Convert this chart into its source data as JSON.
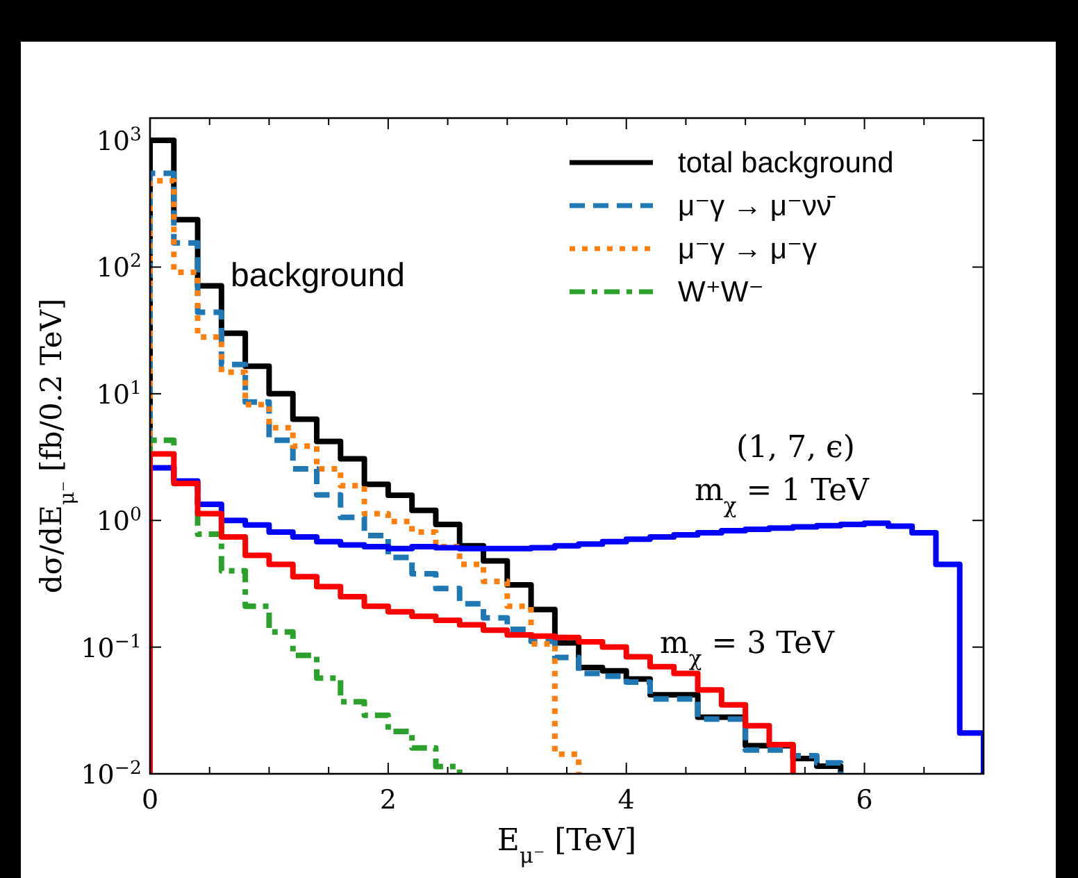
{
  "chart_data": {
    "type": "histogram",
    "xlabel": "E$_{μ⁻}$ [TeV]",
    "ylabel": "dσ/dE$_{μ⁻}$ [fb/0.2 TeV]",
    "bins": [
      0,
      0.2,
      0.4,
      0.6,
      0.8,
      1.0,
      1.2,
      1.4,
      1.6,
      1.8,
      2.0,
      2.2,
      2.4,
      2.6,
      2.8,
      3.0,
      3.2,
      3.4,
      3.6,
      3.8,
      4.0,
      4.2,
      4.4,
      4.6,
      4.8,
      5.0,
      5.2,
      5.4,
      5.6,
      5.8,
      6.0,
      6.2,
      6.4,
      6.6,
      6.8,
      7.0
    ],
    "series": [
      {
        "name": "total background",
        "color": "#000000",
        "line_style": "solid",
        "bins": [
          0,
          0.2,
          0.4,
          0.6,
          0.8,
          1.0,
          1.2,
          1.4,
          1.6,
          1.8,
          2.0,
          2.2,
          2.4,
          2.6,
          2.8,
          3.0,
          3.2,
          3.4,
          3.6,
          3.8,
          4.0,
          4.2,
          4.4,
          4.6,
          4.8,
          5.0,
          5.2,
          5.4,
          5.6,
          5.8
        ],
        "values": [
          1000,
          237,
          71,
          30,
          16.5,
          10,
          6.3,
          4.2,
          3.07,
          1.93,
          1.58,
          1.2,
          0.93,
          0.63,
          0.48,
          0.31,
          0.198,
          0.108,
          0.069,
          0.065,
          0.056,
          0.042,
          0.042,
          0.028,
          0.028,
          0.0167,
          0.0167,
          0.0132,
          0.0115
        ]
      },
      {
        "name": "μ⁻γ → μ⁻νν̄",
        "color": "#1f77b4",
        "line_style": "dashed",
        "bins": [
          0,
          0.2,
          0.4,
          0.6,
          0.8,
          1.0,
          1.2,
          1.4,
          1.6,
          1.8,
          2.0,
          2.2,
          2.4,
          2.6,
          2.8,
          3.0,
          3.2,
          3.4,
          3.6,
          3.8,
          4.0,
          4.2,
          4.4,
          4.6,
          4.8,
          5.0,
          5.2,
          5.4,
          5.6,
          5.8
        ],
        "values": [
          550,
          155,
          44,
          17,
          8.6,
          4.3,
          2.55,
          1.59,
          1.06,
          0.76,
          0.51,
          0.38,
          0.29,
          0.22,
          0.17,
          0.138,
          0.111,
          0.083,
          0.062,
          0.059,
          0.053,
          0.039,
          0.039,
          0.027,
          0.027,
          0.0154,
          0.0154,
          0.0139,
          0.0122
        ]
      },
      {
        "name": "μ⁻γ → μ⁻γ",
        "color": "#ff7f0e",
        "line_style": "dotted",
        "bins": [
          0,
          0.2,
          0.4,
          0.6,
          0.8,
          1.0,
          1.2,
          1.4,
          1.6,
          1.8,
          2.0,
          2.2,
          2.4,
          2.6,
          2.8,
          3.0,
          3.2,
          3.4,
          3.6
        ],
        "values": [
          480,
          91,
          28,
          14.8,
          8.2,
          5.4,
          3.86,
          2.55,
          1.88,
          1.13,
          0.98,
          0.81,
          0.62,
          0.45,
          0.33,
          0.21,
          0.106,
          0.0143
        ]
      },
      {
        "name": "W⁺W⁻",
        "color": "#2ca02c",
        "line_style": "dashdot",
        "bins": [
          0,
          0.2,
          0.4,
          0.6,
          0.8,
          1.0,
          1.2,
          1.4,
          1.6,
          1.8,
          2.0,
          2.2,
          2.4,
          2.6
        ],
        "values": [
          4.3,
          2.0,
          0.78,
          0.4,
          0.21,
          0.132,
          0.086,
          0.057,
          0.037,
          0.029,
          0.0216,
          0.016,
          0.0114
        ]
      },
      {
        "color": "#0000ff",
        "line_style": "solid",
        "values": [
          2.6,
          2.05,
          1.34,
          1.0,
          0.92,
          0.81,
          0.74,
          0.68,
          0.64,
          0.62,
          0.6,
          0.62,
          0.61,
          0.6,
          0.6,
          0.6,
          0.61,
          0.63,
          0.65,
          0.68,
          0.71,
          0.74,
          0.77,
          0.8,
          0.83,
          0.85,
          0.87,
          0.89,
          0.91,
          0.93,
          0.95,
          0.9,
          0.8,
          0.45,
          0.021
        ]
      },
      {
        "color": "#ff0000",
        "line_style": "solid",
        "bins": [
          0,
          0.2,
          0.4,
          0.6,
          0.8,
          1.0,
          1.2,
          1.4,
          1.6,
          1.8,
          2.0,
          2.2,
          2.4,
          2.6,
          2.8,
          3.0,
          3.2,
          3.4,
          3.6,
          3.8,
          4.0,
          4.2,
          4.4,
          4.6,
          4.8,
          5.0,
          5.2,
          5.4
        ],
        "values": [
          3.35,
          1.96,
          1.13,
          0.74,
          0.53,
          0.45,
          0.36,
          0.3,
          0.25,
          0.21,
          0.19,
          0.175,
          0.163,
          0.15,
          0.136,
          0.125,
          0.122,
          0.119,
          0.11,
          0.1,
          0.084,
          0.07,
          0.062,
          0.046,
          0.035,
          0.024,
          0.017
        ]
      }
    ],
    "xlim": [
      0,
      7
    ],
    "xticks": [
      0,
      {
        "value": 0.5,
        "label": null
      },
      {
        "value": 1,
        "label": null
      },
      {
        "value": 1.5,
        "label": null
      },
      2,
      {
        "value": 2.5,
        "label": null
      },
      {
        "value": 3,
        "label": null
      },
      {
        "value": 3.5,
        "label": null
      },
      4,
      {
        "value": 4.5,
        "label": null
      },
      {
        "value": 5,
        "label": null
      },
      {
        "value": 5.5,
        "label": null
      },
      6,
      {
        "value": 6.5,
        "label": null
      }
    ],
    "ylim": [
      0.01,
      1500
    ],
    "log": true,
    "yticks": [
      {
        "value": 0.01,
        "label": "10$^{−2}$"
      },
      {
        "value": 0.1,
        "label": "10$^{−1}$"
      },
      {
        "value": 1,
        "label": "10$^{0}$"
      },
      {
        "value": 10,
        "label": "10$^{1}$"
      },
      {
        "value": 100,
        "label": "10$^{2}$"
      },
      {
        "value": 1000,
        "label": "10$^{3}$"
      }
    ],
    "legend": "top right",
    "annotations": [
      "background",
      "(1, 7, ϵ)",
      "m$_{χ}$ = 1 TeV",
      "m$_{χ}$ = 3 TeV"
    ]
  }
}
